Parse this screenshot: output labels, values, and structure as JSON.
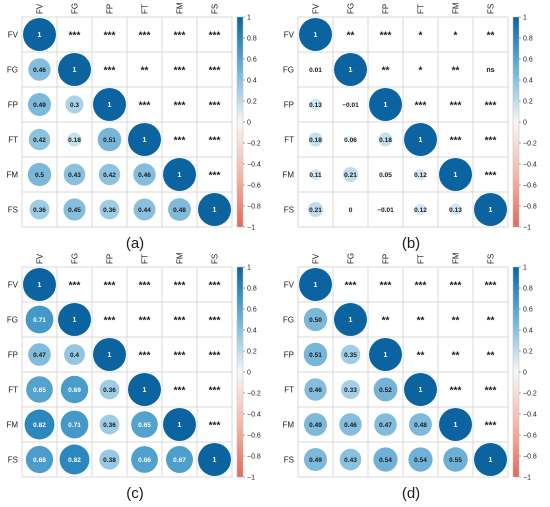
{
  "colors": {
    "positive_dark": "#0b63a0",
    "positive_mid": "#4aa3d0",
    "positive_light": "#d6ebf5",
    "neutral": "#f7f7f7",
    "negative_light": "#f8d8cc",
    "negative_dark": "#e3695b",
    "grid": "#d9d9d9",
    "text": "#1a1a1a"
  },
  "chart_data": [
    {
      "type": "heatmap",
      "panel_label": "(a)",
      "variables": [
        "FV",
        "FG",
        "FP",
        "FT",
        "FM",
        "FS"
      ],
      "correlation": [
        [
          1,
          0.46,
          0.49,
          0.42,
          0.5,
          0.36
        ],
        [
          0.46,
          1,
          0.3,
          0.18,
          0.43,
          0.45
        ],
        [
          0.49,
          0.3,
          1,
          0.51,
          0.42,
          0.36
        ],
        [
          0.42,
          0.18,
          0.51,
          1,
          0.46,
          0.44
        ],
        [
          0.5,
          0.43,
          0.42,
          0.46,
          1,
          0.48
        ],
        [
          0.36,
          0.45,
          0.36,
          0.44,
          0.48,
          1
        ]
      ],
      "lower_labels": [
        [
          "1",
          "",
          "",
          "",
          "",
          ""
        ],
        [
          "0.46",
          "1",
          "",
          "",
          "",
          ""
        ],
        [
          "0.49",
          "0.3",
          "1",
          "",
          "",
          ""
        ],
        [
          "0.42",
          "0.18",
          "0.51",
          "1",
          "",
          ""
        ],
        [
          "0.5",
          "0.43",
          "0.42",
          "0.46",
          "1",
          ""
        ],
        [
          "0.36",
          "0.45",
          "0.36",
          "0.44",
          "0.48",
          "1"
        ]
      ],
      "significance": [
        [
          "",
          "***",
          "***",
          "***",
          "***",
          "***"
        ],
        [
          "",
          "",
          "***",
          "**",
          "***",
          "***"
        ],
        [
          "",
          "",
          "",
          "***",
          "***",
          "***"
        ],
        [
          "",
          "",
          "",
          "",
          "***",
          "***"
        ],
        [
          "",
          "",
          "",
          "",
          "",
          "***"
        ],
        [
          "",
          "",
          "",
          "",
          "",
          ""
        ]
      ],
      "colorbar_ticks": [
        "1",
        "0.8",
        "0.6",
        "0.4",
        "0.2",
        "0",
        "−0.2",
        "−0.4",
        "−0.6",
        "−0.8",
        "−1"
      ],
      "range": [
        -1,
        1
      ]
    },
    {
      "type": "heatmap",
      "panel_label": "(b)",
      "variables": [
        "FV",
        "FG",
        "FP",
        "FT",
        "FM",
        "FS"
      ],
      "correlation": [
        [
          1,
          0.01,
          0.13,
          0.18,
          0.11,
          0.21
        ],
        [
          0.01,
          1,
          -0.01,
          0.06,
          0.21,
          0
        ],
        [
          0.13,
          -0.01,
          1,
          0.18,
          0.05,
          -0.01
        ],
        [
          0.18,
          0.06,
          0.18,
          1,
          0.12,
          0.12
        ],
        [
          0.11,
          0.21,
          0.05,
          0.12,
          1,
          0.13
        ],
        [
          0.21,
          0,
          -0.01,
          0.12,
          0.13,
          1
        ]
      ],
      "lower_labels": [
        [
          "1",
          "",
          "",
          "",
          "",
          ""
        ],
        [
          "0.01",
          "1",
          "",
          "",
          "",
          ""
        ],
        [
          "0.13",
          "−0.01",
          "1",
          "",
          "",
          ""
        ],
        [
          "0.18",
          "0.06",
          "0.18",
          "1",
          "",
          ""
        ],
        [
          "0.11",
          "0.21",
          "0.05",
          "0.12",
          "1",
          ""
        ],
        [
          "0.21",
          "0",
          "−0.01",
          "0.12",
          "0.13",
          "1"
        ]
      ],
      "significance": [
        [
          "",
          "**",
          "***",
          "*",
          "*",
          "**"
        ],
        [
          "",
          "",
          "**",
          "*",
          "**",
          "ns"
        ],
        [
          "",
          "",
          "",
          "***",
          "***",
          "***"
        ],
        [
          "",
          "",
          "",
          "",
          "***",
          "***"
        ],
        [
          "",
          "",
          "",
          "",
          "",
          "***"
        ],
        [
          "",
          "",
          "",
          "",
          "",
          ""
        ]
      ],
      "colorbar_ticks": [
        "1",
        "0.8",
        "0.6",
        "0.4",
        "0.2",
        "0",
        "−0.2",
        "−0.4",
        "−0.6",
        "−0.8",
        "−1"
      ],
      "range": [
        -1,
        1
      ]
    },
    {
      "type": "heatmap",
      "panel_label": "(c)",
      "variables": [
        "FV",
        "FG",
        "FP",
        "FT",
        "FM",
        "FS"
      ],
      "correlation": [
        [
          1,
          0.71,
          0.47,
          0.65,
          0.82,
          0.68
        ],
        [
          0.71,
          1,
          0.4,
          0.69,
          0.71,
          0.82
        ],
        [
          0.47,
          0.4,
          1,
          0.36,
          0.36,
          0.38
        ],
        [
          0.65,
          0.69,
          0.36,
          1,
          0.65,
          0.66
        ],
        [
          0.82,
          0.71,
          0.36,
          0.65,
          1,
          0.67
        ],
        [
          0.68,
          0.82,
          0.38,
          0.66,
          0.67,
          1
        ]
      ],
      "lower_labels": [
        [
          "1",
          "",
          "",
          "",
          "",
          ""
        ],
        [
          "0.71",
          "1",
          "",
          "",
          "",
          ""
        ],
        [
          "0.47",
          "0.4",
          "1",
          "",
          "",
          ""
        ],
        [
          "0.65",
          "0.69",
          "0.36",
          "1",
          "",
          ""
        ],
        [
          "0.82",
          "0.71",
          "0.36",
          "0.65",
          "1",
          ""
        ],
        [
          "0.68",
          "0.82",
          "0.38",
          "0.66",
          "0.67",
          "1"
        ]
      ],
      "significance": [
        [
          "",
          "***",
          "***",
          "***",
          "***",
          "***"
        ],
        [
          "",
          "",
          "***",
          "***",
          "***",
          "***"
        ],
        [
          "",
          "",
          "",
          "***",
          "***",
          "***"
        ],
        [
          "",
          "",
          "",
          "",
          "***",
          "***"
        ],
        [
          "",
          "",
          "",
          "",
          "",
          "***"
        ],
        [
          "",
          "",
          "",
          "",
          "",
          ""
        ]
      ],
      "colorbar_ticks": [
        "1",
        "0.8",
        "0.6",
        "0.4",
        "0.2",
        "0",
        "−0.2",
        "−0.4",
        "−0.6",
        "−0.8",
        "−1"
      ],
      "range": [
        -1,
        1
      ]
    },
    {
      "type": "heatmap",
      "panel_label": "(d)",
      "variables": [
        "FV",
        "FG",
        "FP",
        "FT",
        "FM",
        "FS"
      ],
      "correlation": [
        [
          1,
          0.5,
          0.51,
          0.46,
          0.49,
          0.49
        ],
        [
          0.5,
          1,
          0.35,
          0.33,
          0.46,
          0.43
        ],
        [
          0.51,
          0.35,
          1,
          0.52,
          0.47,
          0.54
        ],
        [
          0.46,
          0.33,
          0.52,
          1,
          0.48,
          0.54
        ],
        [
          0.49,
          0.46,
          0.47,
          0.48,
          1,
          0.55
        ],
        [
          0.49,
          0.43,
          0.54,
          0.54,
          0.55,
          1
        ]
      ],
      "lower_labels": [
        [
          "1",
          "",
          "",
          "",
          "",
          ""
        ],
        [
          "0.50",
          "1",
          "",
          "",
          "",
          ""
        ],
        [
          "0.51",
          "0.35",
          "1",
          "",
          "",
          ""
        ],
        [
          "0.46",
          "0.33",
          "0.52",
          "1",
          "",
          ""
        ],
        [
          "0.49",
          "0.46",
          "0.47",
          "0.48",
          "1",
          ""
        ],
        [
          "0.49",
          "0.43",
          "0.54",
          "0.54",
          "0.55",
          "1"
        ]
      ],
      "significance": [
        [
          "",
          "***",
          "***",
          "***",
          "***",
          "***"
        ],
        [
          "",
          "",
          "**",
          "**",
          "**",
          "**"
        ],
        [
          "",
          "",
          "",
          "**",
          "**",
          "**"
        ],
        [
          "",
          "",
          "",
          "",
          "***",
          "***"
        ],
        [
          "",
          "",
          "",
          "",
          "",
          "***"
        ],
        [
          "",
          "",
          "",
          "",
          "",
          ""
        ]
      ],
      "colorbar_ticks": [
        "1",
        "0.8",
        "0.6",
        "0.4",
        "0.2",
        "0",
        "−0.2",
        "−0.4",
        "−0.6",
        "−0.8",
        "−1"
      ],
      "range": [
        -1,
        1
      ]
    }
  ]
}
